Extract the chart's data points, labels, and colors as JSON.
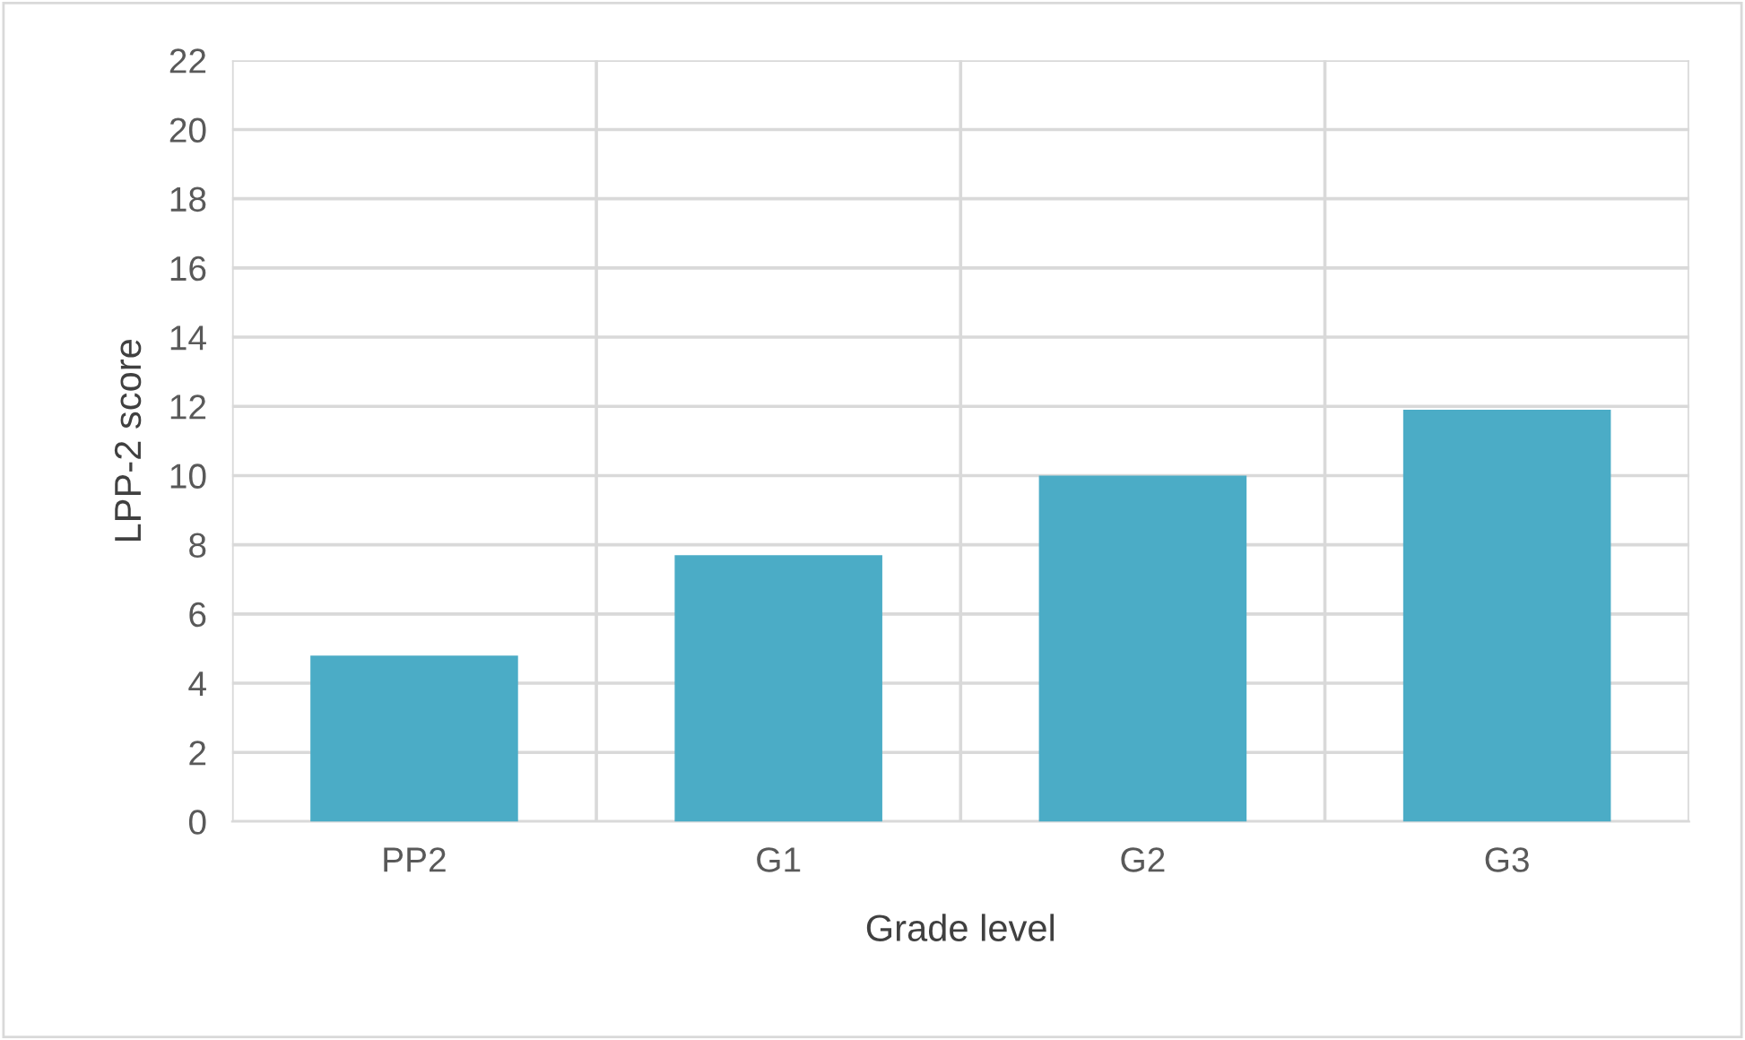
{
  "chart_data": {
    "type": "bar",
    "xlabel": "Grade level",
    "ylabel": "LPP-2 score",
    "categories": [
      "PP2",
      "G1",
      "G2",
      "G3"
    ],
    "values": [
      4.8,
      7.7,
      10.0,
      11.9
    ],
    "color": "#4bacc6",
    "ylim": [
      0,
      22
    ],
    "yticks": [
      0,
      2,
      4,
      6,
      8,
      10,
      12,
      14,
      16,
      18,
      20,
      22
    ],
    "grid": true
  }
}
